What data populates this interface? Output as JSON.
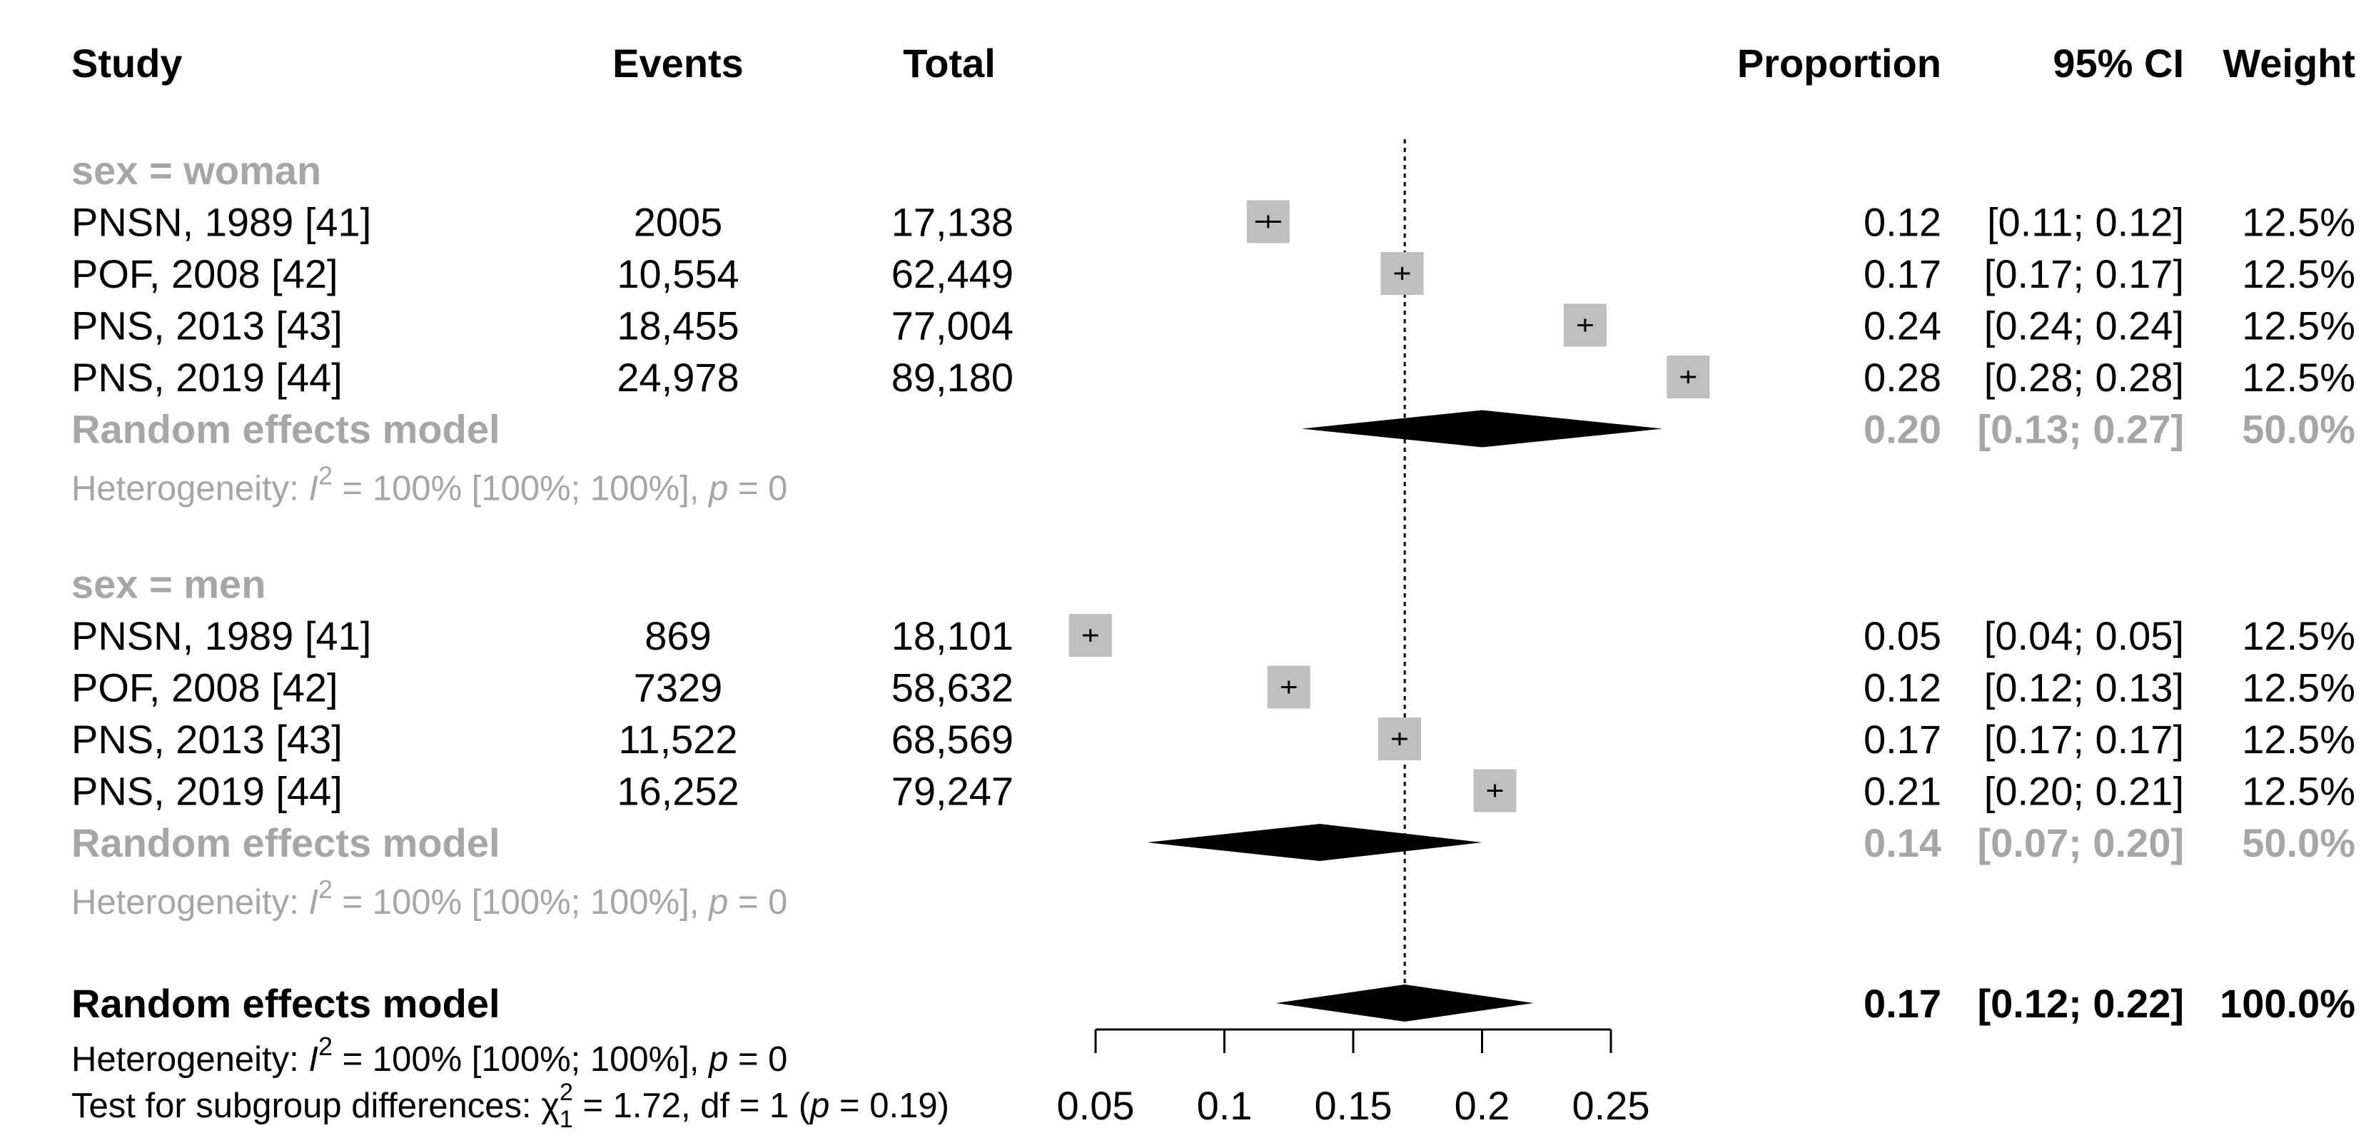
{
  "colors": {
    "square": "#bfbfbf",
    "subgroup_text": "#a6a6a6",
    "diamond": "#000000",
    "text": "#000000"
  },
  "chart_data": {
    "type": "forest",
    "headers": {
      "study": "Study",
      "events": "Events",
      "total": "Total",
      "proportion": "Proportion",
      "ci": "95% CI",
      "weight": "Weight"
    },
    "reference_line": 0.17,
    "axis": {
      "xlim": [
        0.05,
        0.25
      ],
      "ticks": [
        0.05,
        0.1,
        0.15,
        0.2,
        0.25
      ],
      "tick_labels": [
        "0.05",
        "0.1",
        "0.15",
        "0.2",
        "0.25"
      ]
    },
    "subgroups": [
      {
        "label": "sex = woman",
        "studies": [
          {
            "study": "PNSN, 1989 [41]",
            "events": "2005",
            "total": "17,138",
            "est": 0.117,
            "lo": 0.112,
            "hi": 0.122,
            "proportion": "0.12",
            "ci": "[0.11; 0.12]",
            "weight": "12.5%"
          },
          {
            "study": "POF, 2008 [42]",
            "events": "10,554",
            "total": "62,449",
            "est": 0.169,
            "lo": 0.166,
            "hi": 0.172,
            "proportion": "0.17",
            "ci": "[0.17; 0.17]",
            "weight": "12.5%"
          },
          {
            "study": "PNS, 2013 [43]",
            "events": "18,455",
            "total": "77,004",
            "est": 0.24,
            "lo": 0.237,
            "hi": 0.243,
            "proportion": "0.24",
            "ci": "[0.24; 0.24]",
            "weight": "12.5%"
          },
          {
            "study": "PNS, 2019 [44]",
            "events": "24,978",
            "total": "89,180",
            "est": 0.28,
            "lo": 0.277,
            "hi": 0.283,
            "proportion": "0.28",
            "ci": "[0.28; 0.28]",
            "weight": "12.5%"
          }
        ],
        "model": {
          "label": "Random effects model",
          "est": 0.2,
          "lo": 0.13,
          "hi": 0.27,
          "proportion": "0.20",
          "ci": "[0.13; 0.27]",
          "weight": "50.0%"
        },
        "heterogeneity": {
          "prefix": "Heterogeneity: ",
          "i": "I",
          "sup": "2",
          "mid": " = 100% [100%; 100%], ",
          "p": "p",
          "suffix": " = 0"
        }
      },
      {
        "label": "sex = men",
        "studies": [
          {
            "study": "PNSN, 1989 [41]",
            "events": "869",
            "total": "18,101",
            "est": 0.048,
            "lo": 0.045,
            "hi": 0.051,
            "proportion": "0.05",
            "ci": "[0.04; 0.05]",
            "weight": "12.5%"
          },
          {
            "study": "POF, 2008 [42]",
            "events": "7329",
            "total": "58,632",
            "est": 0.125,
            "lo": 0.122,
            "hi": 0.128,
            "proportion": "0.12",
            "ci": "[0.12; 0.13]",
            "weight": "12.5%"
          },
          {
            "study": "PNS, 2013 [43]",
            "events": "11,522",
            "total": "68,569",
            "est": 0.168,
            "lo": 0.165,
            "hi": 0.171,
            "proportion": "0.17",
            "ci": "[0.17; 0.17]",
            "weight": "12.5%"
          },
          {
            "study": "PNS, 2019 [44]",
            "events": "16,252",
            "total": "79,247",
            "est": 0.205,
            "lo": 0.202,
            "hi": 0.208,
            "proportion": "0.21",
            "ci": "[0.20; 0.21]",
            "weight": "12.5%"
          }
        ],
        "model": {
          "label": "Random effects model",
          "est": 0.137,
          "lo": 0.07,
          "hi": 0.2,
          "proportion": "0.14",
          "ci": "[0.07; 0.20]",
          "weight": "50.0%"
        },
        "heterogeneity": {
          "prefix": "Heterogeneity: ",
          "i": "I",
          "sup": "2",
          "mid": " = 100% [100%; 100%], ",
          "p": "p",
          "suffix": " = 0"
        }
      }
    ],
    "overall": {
      "label": "Random effects model",
      "est": 0.17,
      "lo": 0.12,
      "hi": 0.22,
      "proportion": "0.17",
      "ci": "[0.12; 0.22]",
      "weight": "100.0%",
      "heterogeneity": {
        "prefix": "Heterogeneity: ",
        "i": "I",
        "sup": "2",
        "mid": " = 100% [100%; 100%], ",
        "p": "p",
        "suffix": " = 0"
      },
      "subgroup_test": {
        "prefix": "Test for subgroup differences: ",
        "chi": "χ",
        "sup": "2",
        "sub": "1",
        "mid": " = 1.72, df = 1 (",
        "p": "p",
        "suffix": " = 0.19)"
      }
    }
  }
}
